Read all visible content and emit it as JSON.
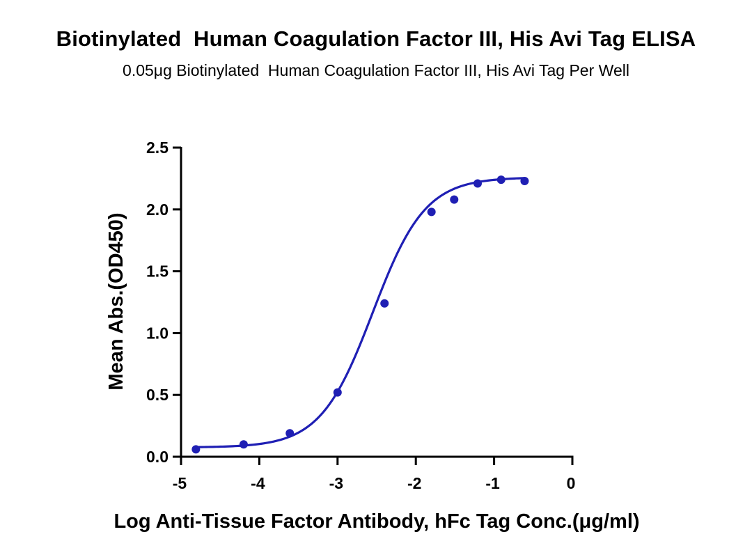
{
  "title": "Biotinylated  Human Coagulation Factor III, His Avi Tag ELISA",
  "subtitle": "0.05μg Biotinylated  Human Coagulation Factor III, His Avi Tag Per Well",
  "chart_data": {
    "type": "scatter",
    "title": "Biotinylated  Human Coagulation Factor III, His Avi Tag ELISA",
    "subtitle": "0.05μg Biotinylated  Human Coagulation Factor III, His Avi Tag Per Well",
    "xlabel": "Log Anti-Tissue Factor Antibody, hFc Tag Conc.(μg/ml)",
    "ylabel": "Mean Abs.(OD450)",
    "xlim": [
      -5,
      0
    ],
    "ylim": [
      0,
      2.5
    ],
    "x_ticks": [
      "-5",
      "-4",
      "-3",
      "-2",
      "-1",
      "0"
    ],
    "y_ticks": [
      "0.0",
      "0.5",
      "1.0",
      "1.5",
      "2.0",
      "2.5"
    ],
    "grid": false,
    "legend": "none",
    "color": "#1f1fb4",
    "series": [
      {
        "x": [
          -4.81,
          -4.2,
          -3.61,
          -3.0,
          -2.4,
          -1.8,
          -1.51,
          -1.21,
          -0.91,
          -0.61
        ],
        "y": [
          0.06,
          0.1,
          0.19,
          0.52,
          1.24,
          1.98,
          2.08,
          2.21,
          2.24,
          2.23
        ],
        "fit": "4PL sigmoidal curve"
      }
    ]
  }
}
